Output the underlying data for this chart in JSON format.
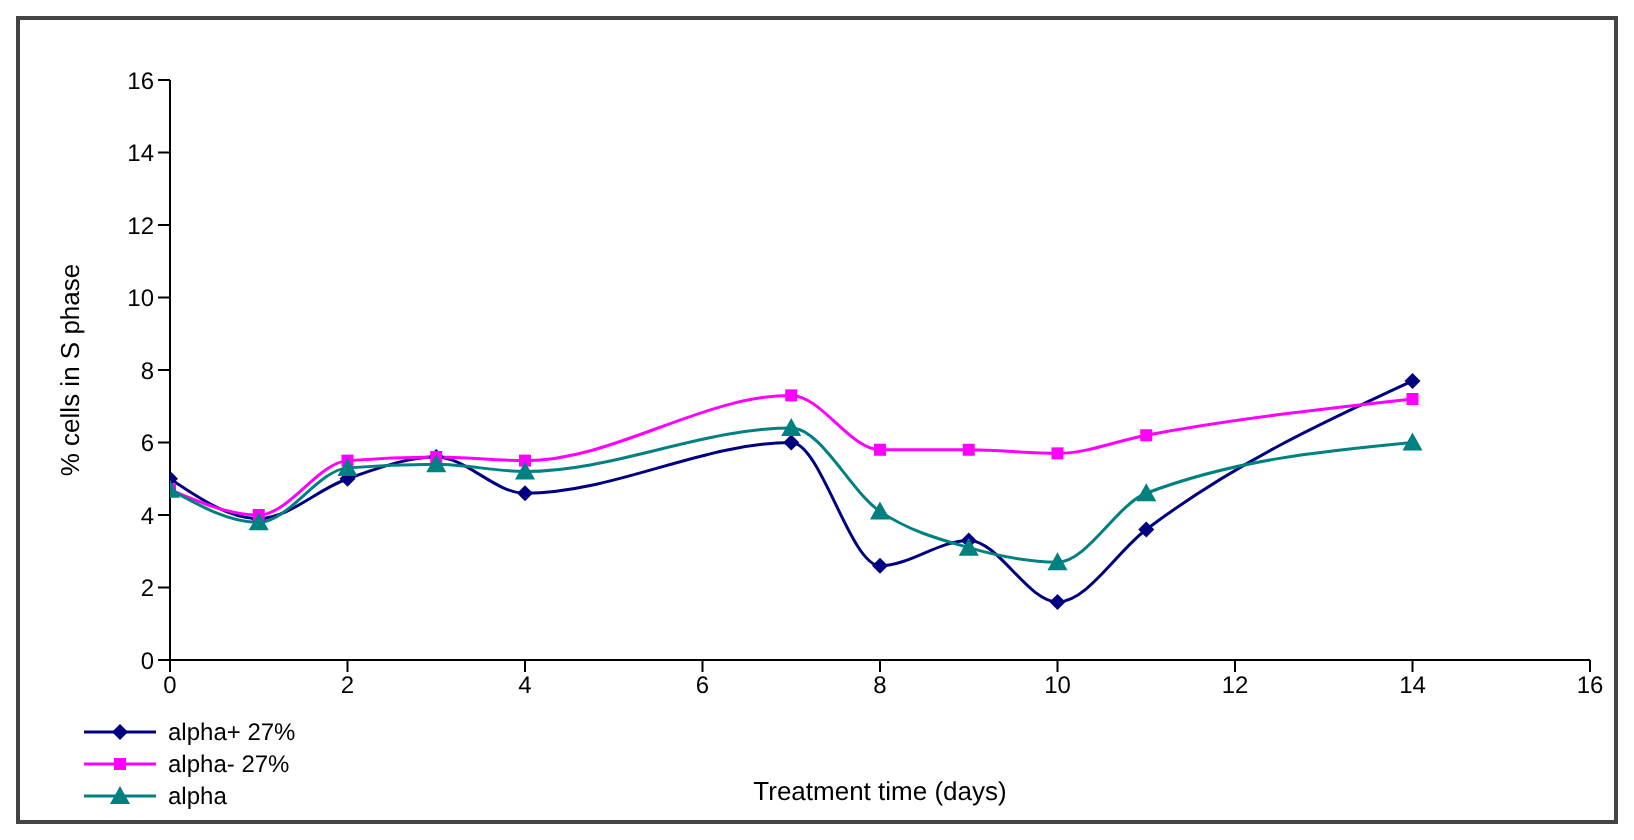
{
  "chart_data": {
    "type": "line",
    "xlabel": "Treatment time (days)",
    "ylabel": "% cells in S phase",
    "x": [
      0,
      1,
      2,
      3,
      4,
      7,
      8,
      9,
      10,
      11,
      14
    ],
    "series": [
      {
        "name": "alpha+ 27%",
        "color": "#000080",
        "marker": "diamond",
        "values": [
          5.0,
          3.9,
          5.0,
          5.6,
          4.6,
          6.0,
          2.6,
          3.3,
          1.6,
          3.6,
          7.7
        ]
      },
      {
        "name": "alpha- 27%",
        "color": "#ff00ff",
        "marker": "square",
        "values": [
          4.7,
          4.0,
          5.5,
          5.6,
          5.5,
          7.3,
          5.8,
          5.8,
          5.7,
          6.2,
          7.2
        ]
      },
      {
        "name": "alpha",
        "color": "#008080",
        "marker": "triangle",
        "values": [
          4.7,
          3.8,
          5.3,
          5.4,
          5.2,
          6.4,
          4.1,
          3.1,
          2.7,
          4.6,
          6.0
        ]
      }
    ],
    "xlim": [
      0,
      16
    ],
    "xticks": [
      0,
      2,
      4,
      6,
      8,
      10,
      12,
      14,
      16
    ],
    "ylim": [
      0,
      16
    ],
    "yticks": [
      0,
      2,
      4,
      6,
      8,
      10,
      12,
      14,
      16
    ],
    "grid": false,
    "legend": "bottom left"
  }
}
